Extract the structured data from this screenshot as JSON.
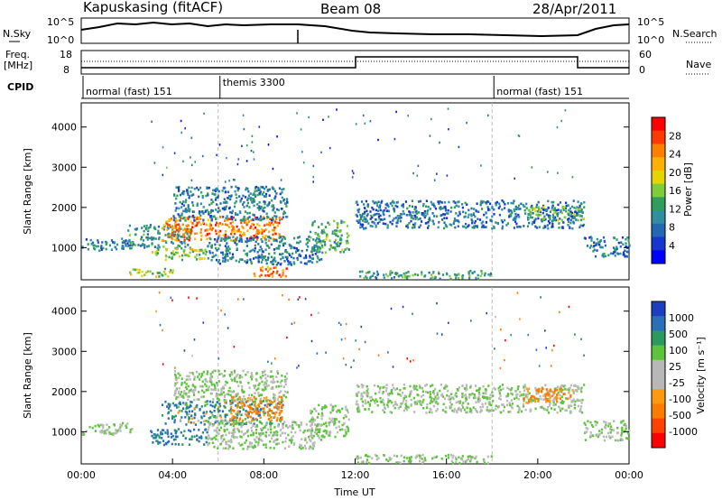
{
  "header": {
    "station": "Kapuskasing (fitACF)",
    "beam": "Beam 08",
    "date": "28/Apr/2011"
  },
  "noise_panel": {
    "left_label": "N.Sky",
    "right_label": "N.Search",
    "left_ticks": [
      "10^5",
      "10^0"
    ],
    "right_ticks": [
      "10^5",
      "10^0"
    ]
  },
  "freq_panel": {
    "left_label_1": "Freq.",
    "left_label_2": "[MHz]",
    "right_label": "Nave",
    "left_ticks": [
      "18",
      "8"
    ],
    "right_ticks": [
      "60",
      "0"
    ]
  },
  "cpid": {
    "label": "CPID",
    "segments": [
      {
        "name": "normal (fast) 151",
        "start_hour": 0
      },
      {
        "name": "themis 3300",
        "start_hour": 6
      },
      {
        "name": "normal (fast) 151",
        "start_hour": 18
      }
    ]
  },
  "chart_data": [
    {
      "type": "heatmap",
      "title": "",
      "ylabel": "Slant Range [km]",
      "xlabel": "",
      "xlim": [
        0,
        24
      ],
      "ylim": [
        200,
        4600
      ],
      "y_ticks": [
        "1000",
        "2000",
        "3000",
        "4000"
      ],
      "x_ticks": [],
      "colorbar": {
        "label": "Power [dB]",
        "ticks": [
          "28",
          "24",
          "20",
          "16",
          "12",
          "8",
          "4"
        ],
        "colors": [
          "#ff0000",
          "#ff3a00",
          "#ff7f00",
          "#ffb000",
          "#e5d400",
          "#7fcc3a",
          "#2e9e5a",
          "#2f8fa0",
          "#2468b5",
          "#1536d0",
          "#0000ff"
        ]
      },
      "regions": [
        {
          "t0": 0.0,
          "t1": 2.2,
          "r0": 950,
          "r1": 1250,
          "level": 8
        },
        {
          "t0": 2.0,
          "t1": 4.8,
          "r0": 1000,
          "r1": 1600,
          "level": 10
        },
        {
          "t0": 3.5,
          "t1": 8.8,
          "r0": 1200,
          "r1": 1800,
          "level": 24
        },
        {
          "t0": 4.0,
          "t1": 9.0,
          "r0": 1700,
          "r1": 2550,
          "level": 8
        },
        {
          "t0": 3.0,
          "t1": 5.5,
          "r0": 700,
          "r1": 1000,
          "level": 16
        },
        {
          "t0": 5.5,
          "t1": 10.5,
          "r0": 600,
          "r1": 1300,
          "level": 8
        },
        {
          "t0": 2.0,
          "t1": 4.0,
          "r0": 300,
          "r1": 500,
          "level": 16
        },
        {
          "t0": 7.5,
          "t1": 9.0,
          "r0": 300,
          "r1": 550,
          "level": 24
        },
        {
          "t0": 10.0,
          "t1": 11.7,
          "r0": 900,
          "r1": 1700,
          "level": 12
        },
        {
          "t0": 12.0,
          "t1": 22.0,
          "r0": 1500,
          "r1": 2200,
          "level": 7
        },
        {
          "t0": 19.5,
          "t1": 22.0,
          "r0": 1700,
          "r1": 2050,
          "level": 13
        },
        {
          "t0": 22.0,
          "t1": 24.0,
          "r0": 800,
          "r1": 1300,
          "level": 8
        },
        {
          "t0": 12.0,
          "t1": 18.0,
          "r0": 250,
          "r1": 450,
          "level": 11
        }
      ]
    },
    {
      "type": "heatmap",
      "title": "",
      "ylabel": "Slant Range [km]",
      "xlabel": "Time UT",
      "xlim": [
        0,
        24
      ],
      "ylim": [
        200,
        4600
      ],
      "y_ticks": [
        "1000",
        "2000",
        "3000",
        "4000"
      ],
      "x_ticks": [
        "00:00",
        "04:00",
        "08:00",
        "12:00",
        "16:00",
        "20:00",
        "00:00"
      ],
      "colorbar": {
        "label": "Velocity [m s⁻¹]",
        "ticks": [
          "1000",
          "500",
          "100",
          "25",
          "-25",
          "-100",
          "-500",
          "-1000"
        ],
        "colors": [
          "#1b3fbf",
          "#2a70b8",
          "#2a9a5e",
          "#5cc43a",
          "#b8b8b8",
          "#b8b8b8",
          "#ff9a10",
          "#ff7a00",
          "#ff4200",
          "#ff0000"
        ]
      },
      "regions": [
        {
          "t0": 0.0,
          "t1": 2.2,
          "r0": 950,
          "r1": 1250,
          "v": 0
        },
        {
          "t0": 3.0,
          "t1": 5.5,
          "r0": 700,
          "r1": 1100,
          "v": 150
        },
        {
          "t0": 3.5,
          "t1": 8.8,
          "r0": 1200,
          "r1": 1800,
          "v": 80
        },
        {
          "t0": 6.5,
          "t1": 8.8,
          "r0": 1300,
          "r1": 1900,
          "v": -150
        },
        {
          "t0": 4.0,
          "t1": 9.0,
          "r0": 1800,
          "r1": 2550,
          "v": 0
        },
        {
          "t0": 5.5,
          "t1": 10.5,
          "r0": 600,
          "r1": 1300,
          "v": 0
        },
        {
          "t0": 10.0,
          "t1": 11.7,
          "r0": 900,
          "r1": 1700,
          "v": 0
        },
        {
          "t0": 12.0,
          "t1": 22.0,
          "r0": 1500,
          "r1": 2200,
          "v": 0
        },
        {
          "t0": 19.3,
          "t1": 21.5,
          "r0": 1750,
          "r1": 2100,
          "v": -150
        },
        {
          "t0": 22.0,
          "t1": 24.0,
          "r0": 800,
          "r1": 1300,
          "v": 0
        },
        {
          "t0": 12.0,
          "t1": 18.0,
          "r0": 250,
          "r1": 450,
          "v": 0
        }
      ]
    }
  ]
}
